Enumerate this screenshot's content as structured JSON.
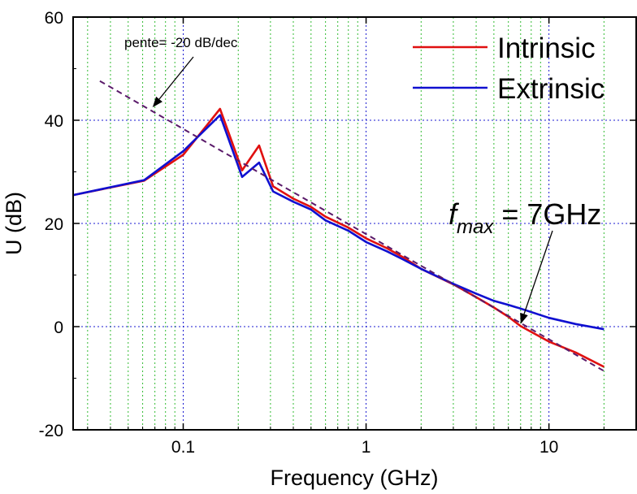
{
  "chart_data": {
    "type": "line",
    "title": "",
    "xlabel": "Frequency (GHz)",
    "ylabel": "U (dB)",
    "x_scale": "log",
    "xlim": [
      0.025,
      30
    ],
    "ylim": [
      -20,
      60
    ],
    "x_ticks": [
      {
        "value": 0.1,
        "label": "0.1"
      },
      {
        "value": 1,
        "label": "1"
      },
      {
        "value": 10,
        "label": "10"
      }
    ],
    "y_ticks": [
      {
        "value": -20,
        "label": "-20"
      },
      {
        "value": 0,
        "label": "0"
      },
      {
        "value": 20,
        "label": "20"
      },
      {
        "value": 40,
        "label": "40"
      },
      {
        "value": 60,
        "label": "60"
      }
    ],
    "grid": {
      "major": true,
      "minor_x": true,
      "major_color": "#1a1ad0",
      "minor_color": "#33bb33"
    },
    "legend_position": "top-right",
    "series": [
      {
        "name": "Intrinsic",
        "color": "#e01010",
        "x": [
          0.025,
          0.0612,
          0.1,
          0.159,
          0.21,
          0.26,
          0.31,
          0.4,
          0.5,
          0.6,
          0.8,
          1.0,
          1.3,
          1.6,
          2.0,
          3.0,
          4.0,
          5.0,
          6.0,
          7.0,
          10.0,
          14.0,
          20.0
        ],
        "y": [
          25.5,
          28.3,
          33.3,
          42.2,
          30.3,
          35.1,
          27.2,
          24.8,
          23.2,
          21.3,
          19.2,
          17.1,
          15.2,
          13.4,
          11.2,
          8.2,
          5.7,
          3.7,
          1.9,
          0.1,
          -2.9,
          -5.0,
          -7.8
        ]
      },
      {
        "name": "Extrinsic",
        "color": "#1010d0",
        "x": [
          0.025,
          0.0612,
          0.1,
          0.159,
          0.21,
          0.26,
          0.31,
          0.4,
          0.5,
          0.6,
          0.8,
          1.0,
          1.3,
          1.6,
          2.0,
          3.0,
          4.0,
          5.0,
          6.0,
          7.0,
          10.0,
          14.0,
          20.0
        ],
        "y": [
          25.5,
          28.4,
          34.0,
          41.0,
          29.0,
          31.8,
          26.2,
          24.2,
          22.7,
          20.6,
          18.6,
          16.4,
          14.6,
          13.0,
          11.2,
          8.3,
          6.4,
          5.0,
          4.2,
          3.5,
          1.7,
          0.5,
          -0.5
        ]
      },
      {
        "name": "",
        "color": "#5a1a6a",
        "style": "dashed",
        "x": [
          0.035,
          20.0
        ],
        "y": [
          47.6,
          -8.6
        ]
      }
    ],
    "annotations": [
      {
        "name": "slope",
        "text": "pente= -20 dB/dec",
        "arrow_to_x": 0.068,
        "arrow_to_y": 42.5
      },
      {
        "name": "fmax",
        "prefix": "f",
        "subscript": "max",
        "text": "= 7GHz",
        "arrow_to_x": 7.0,
        "arrow_to_y": 0.5
      }
    ]
  }
}
